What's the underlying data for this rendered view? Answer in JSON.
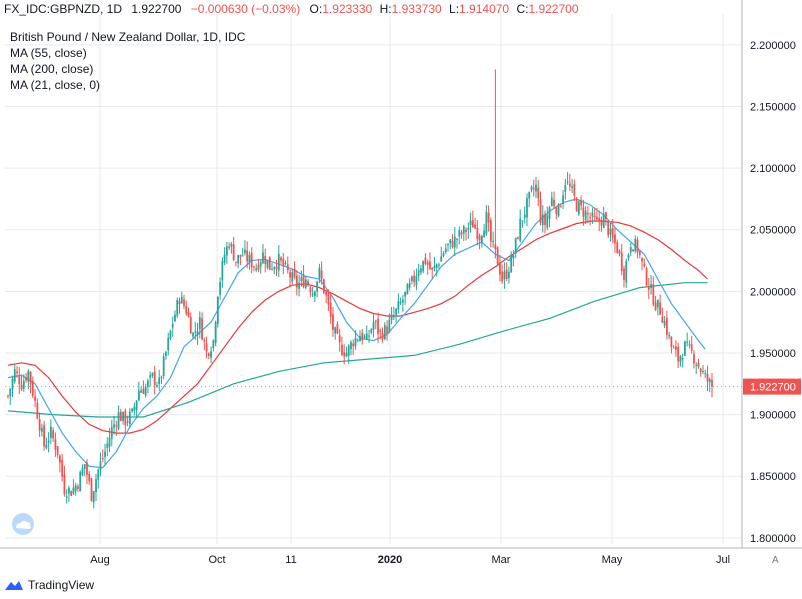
{
  "header": {
    "symbol": "FX_IDC:GBPNZD, 1D",
    "last": "1.922700",
    "change": "−0.000630 (−0.03%)",
    "o_label": "O:",
    "o_value": "1.923330",
    "h_label": "H:",
    "h_value": "1.933730",
    "l_label": "L:",
    "l_value": "1.914070",
    "c_label": "C:",
    "c_value": "1.922700"
  },
  "legend": {
    "title": "British Pound / New Zealand Dollar, 1D, IDC",
    "ma1": "MA (55, close)",
    "ma2": "MA (200, close)",
    "ma3": "MA (21, close, 0)"
  },
  "price_badge": "1.922700",
  "scale_button": "A",
  "branding": "TradingView",
  "colors": {
    "up": "#26a69a",
    "down": "#ef5350",
    "ma55": "#e53935",
    "ma200": "#26a69a",
    "ma21": "#42a5f5",
    "grid": "#e8eaee",
    "axis_text": "#131722"
  },
  "chart_data": {
    "type": "candlestick",
    "title": "British Pound / New Zealand Dollar, 1D, IDC",
    "xlabel": "",
    "ylabel": "",
    "ylim": [
      1.795,
      2.225
    ],
    "grid": true,
    "x_ticks": [
      "Aug",
      "Oct",
      "11",
      "2020",
      "Mar",
      "May",
      "Jul"
    ],
    "y_ticks": [
      "2.200000",
      "2.150000",
      "2.100000",
      "2.050000",
      "2.000000",
      "1.950000",
      "1.900000",
      "1.850000",
      "1.800000"
    ],
    "y_tick_values": [
      2.2,
      2.15,
      2.1,
      2.05,
      2.0,
      1.95,
      1.9,
      1.85,
      1.8
    ],
    "close_path": [
      [
        0,
        1.915
      ],
      [
        3,
        1.935
      ],
      [
        6,
        1.925
      ],
      [
        9,
        1.935
      ],
      [
        12,
        1.91
      ],
      [
        16,
        1.875
      ],
      [
        19,
        1.885
      ],
      [
        22,
        1.87
      ],
      [
        25,
        1.84
      ],
      [
        28,
        1.838
      ],
      [
        31,
        1.845
      ],
      [
        34,
        1.86
      ],
      [
        37,
        1.835
      ],
      [
        40,
        1.855
      ],
      [
        43,
        1.87
      ],
      [
        46,
        1.888
      ],
      [
        49,
        1.9
      ],
      [
        52,
        1.895
      ],
      [
        55,
        1.9
      ],
      [
        58,
        1.92
      ],
      [
        61,
        1.922
      ],
      [
        64,
        1.93
      ],
      [
        67,
        1.925
      ],
      [
        70,
        1.95
      ],
      [
        73,
        1.975
      ],
      [
        76,
        1.995
      ],
      [
        79,
        1.985
      ],
      [
        82,
        1.965
      ],
      [
        85,
        1.975
      ],
      [
        88,
        1.95
      ],
      [
        91,
        1.96
      ],
      [
        93,
        2.0
      ],
      [
        96,
        2.03
      ],
      [
        98,
        2.04
      ],
      [
        101,
        2.025
      ],
      [
        104,
        2.03
      ],
      [
        107,
        2.025
      ],
      [
        110,
        2.02
      ],
      [
        113,
        2.03
      ],
      [
        116,
        2.02
      ],
      [
        120,
        2.025
      ],
      [
        124,
        2.015
      ],
      [
        128,
        2.005
      ],
      [
        132,
        2.01
      ],
      [
        135,
        2.0
      ],
      [
        138,
        2.015
      ],
      [
        141,
        1.995
      ],
      [
        144,
        1.97
      ],
      [
        147,
        1.955
      ],
      [
        150,
        1.95
      ],
      [
        153,
        1.96
      ],
      [
        156,
        1.965
      ],
      [
        159,
        1.96
      ],
      [
        162,
        1.975
      ],
      [
        165,
        1.965
      ],
      [
        168,
        1.97
      ],
      [
        171,
        1.98
      ],
      [
        174,
        1.99
      ],
      [
        177,
        2.0
      ],
      [
        180,
        2.01
      ],
      [
        182,
        2.02
      ],
      [
        185,
        2.025
      ],
      [
        188,
        2.015
      ],
      [
        191,
        2.025
      ],
      [
        194,
        2.035
      ],
      [
        197,
        2.04
      ],
      [
        200,
        2.045
      ],
      [
        203,
        2.05
      ],
      [
        206,
        2.055
      ],
      [
        209,
        2.045
      ],
      [
        212,
        2.06
      ],
      [
        214,
        2.04
      ],
      [
        217,
        2.025
      ],
      [
        219,
        2.01
      ],
      [
        221,
        2.015
      ],
      [
        224,
        2.03
      ],
      [
        227,
        2.055
      ],
      [
        230,
        2.07
      ],
      [
        232,
        2.08
      ],
      [
        234,
        2.085
      ],
      [
        236,
        2.06
      ],
      [
        238,
        2.055
      ],
      [
        241,
        2.075
      ],
      [
        244,
        2.065
      ],
      [
        247,
        2.09
      ],
      [
        250,
        2.08
      ],
      [
        252,
        2.07
      ],
      [
        255,
        2.065
      ],
      [
        258,
        2.06
      ],
      [
        261,
        2.055
      ],
      [
        264,
        2.06
      ],
      [
        267,
        2.045
      ],
      [
        270,
        2.035
      ],
      [
        273,
        2.015
      ],
      [
        276,
        2.04
      ],
      [
        279,
        2.035
      ],
      [
        282,
        2.015
      ],
      [
        285,
        2.0
      ],
      [
        287,
        1.99
      ],
      [
        289,
        1.985
      ],
      [
        291,
        1.975
      ],
      [
        294,
        1.955
      ],
      [
        297,
        1.945
      ],
      [
        300,
        1.955
      ],
      [
        303,
        1.95
      ],
      [
        306,
        1.94
      ],
      [
        309,
        1.93
      ],
      [
        312,
        1.9227
      ]
    ],
    "series": [
      {
        "name": "MA (55, close)",
        "points": [
          [
            0,
            1.94
          ],
          [
            6,
            1.942
          ],
          [
            12,
            1.94
          ],
          [
            18,
            1.93
          ],
          [
            24,
            1.915
          ],
          [
            30,
            1.902
          ],
          [
            36,
            1.892
          ],
          [
            42,
            1.887
          ],
          [
            48,
            1.885
          ],
          [
            54,
            1.885
          ],
          [
            60,
            1.888
          ],
          [
            66,
            1.895
          ],
          [
            72,
            1.905
          ],
          [
            78,
            1.915
          ],
          [
            84,
            1.925
          ],
          [
            90,
            1.94
          ],
          [
            96,
            1.955
          ],
          [
            102,
            1.97
          ],
          [
            108,
            1.983
          ],
          [
            114,
            1.993
          ],
          [
            120,
            2.0
          ],
          [
            126,
            2.005
          ],
          [
            132,
            2.006
          ],
          [
            138,
            2.003
          ],
          [
            144,
            1.998
          ],
          [
            150,
            1.992
          ],
          [
            156,
            1.986
          ],
          [
            162,
            1.982
          ],
          [
            168,
            1.98
          ],
          [
            174,
            1.98
          ],
          [
            180,
            1.983
          ],
          [
            186,
            1.986
          ],
          [
            192,
            1.99
          ],
          [
            198,
            1.996
          ],
          [
            204,
            2.005
          ],
          [
            210,
            2.013
          ],
          [
            216,
            2.02
          ],
          [
            222,
            2.028
          ],
          [
            228,
            2.035
          ],
          [
            234,
            2.042
          ],
          [
            240,
            2.047
          ],
          [
            246,
            2.051
          ],
          [
            252,
            2.055
          ],
          [
            258,
            2.057
          ],
          [
            264,
            2.057
          ],
          [
            270,
            2.056
          ],
          [
            276,
            2.053
          ],
          [
            282,
            2.048
          ],
          [
            288,
            2.042
          ],
          [
            294,
            2.034
          ],
          [
            300,
            2.025
          ],
          [
            306,
            2.017
          ],
          [
            310,
            2.01
          ]
        ]
      },
      {
        "name": "MA (200, close)",
        "points": [
          [
            0,
            1.903
          ],
          [
            20,
            1.9
          ],
          [
            40,
            1.898
          ],
          [
            60,
            1.898
          ],
          [
            80,
            1.91
          ],
          [
            100,
            1.925
          ],
          [
            120,
            1.935
          ],
          [
            140,
            1.942
          ],
          [
            160,
            1.945
          ],
          [
            180,
            1.948
          ],
          [
            200,
            1.957
          ],
          [
            220,
            1.968
          ],
          [
            240,
            1.978
          ],
          [
            260,
            1.992
          ],
          [
            280,
            2.003
          ],
          [
            300,
            2.007
          ],
          [
            310,
            2.007
          ]
        ]
      },
      {
        "name": "MA (21, close, 0)",
        "points": [
          [
            0,
            1.93
          ],
          [
            6,
            1.932
          ],
          [
            12,
            1.925
          ],
          [
            18,
            1.905
          ],
          [
            24,
            1.885
          ],
          [
            30,
            1.87
          ],
          [
            36,
            1.858
          ],
          [
            42,
            1.857
          ],
          [
            48,
            1.87
          ],
          [
            54,
            1.89
          ],
          [
            60,
            1.905
          ],
          [
            66,
            1.915
          ],
          [
            72,
            1.93
          ],
          [
            78,
            1.955
          ],
          [
            84,
            1.965
          ],
          [
            90,
            1.975
          ],
          [
            96,
            1.995
          ],
          [
            102,
            2.015
          ],
          [
            108,
            2.025
          ],
          [
            114,
            2.026
          ],
          [
            120,
            2.022
          ],
          [
            126,
            2.018
          ],
          [
            132,
            2.012
          ],
          [
            138,
            2.01
          ],
          [
            144,
            1.995
          ],
          [
            150,
            1.975
          ],
          [
            156,
            1.962
          ],
          [
            162,
            1.96
          ],
          [
            168,
            1.965
          ],
          [
            174,
            1.978
          ],
          [
            180,
            1.99
          ],
          [
            186,
            2.005
          ],
          [
            192,
            2.02
          ],
          [
            198,
            2.03
          ],
          [
            204,
            2.035
          ],
          [
            210,
            2.04
          ],
          [
            216,
            2.03
          ],
          [
            222,
            2.025
          ],
          [
            228,
            2.04
          ],
          [
            234,
            2.055
          ],
          [
            240,
            2.065
          ],
          [
            246,
            2.072
          ],
          [
            252,
            2.075
          ],
          [
            258,
            2.07
          ],
          [
            264,
            2.062
          ],
          [
            270,
            2.05
          ],
          [
            276,
            2.04
          ],
          [
            282,
            2.03
          ],
          [
            288,
            2.01
          ],
          [
            294,
            1.99
          ],
          [
            300,
            1.975
          ],
          [
            306,
            1.96
          ],
          [
            309,
            1.953
          ]
        ]
      }
    ]
  }
}
